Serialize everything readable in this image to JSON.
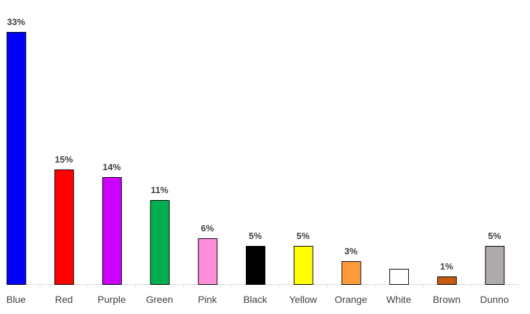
{
  "chart_data": {
    "type": "bar",
    "categories": [
      "Blue",
      "Red",
      "Purple",
      "Green",
      "Pink",
      "Black",
      "Yellow",
      "Orange",
      "White",
      "Brown",
      "Dunno"
    ],
    "values": [
      33,
      15,
      14,
      11,
      6,
      5,
      5,
      3,
      2,
      1,
      5
    ],
    "value_labels": [
      "33%",
      "15%",
      "14%",
      "11%",
      "6%",
      "5%",
      "5%",
      "3%",
      null,
      "1%",
      "5%"
    ],
    "colors": [
      "#0000ff",
      "#ff0000",
      "#cc00ff",
      "#00b050",
      "#ff8fdb",
      "#000000",
      "#ffff00",
      "#ff9a3c",
      "#ffffff",
      "#c55a11",
      "#aeaaaa"
    ]
  }
}
